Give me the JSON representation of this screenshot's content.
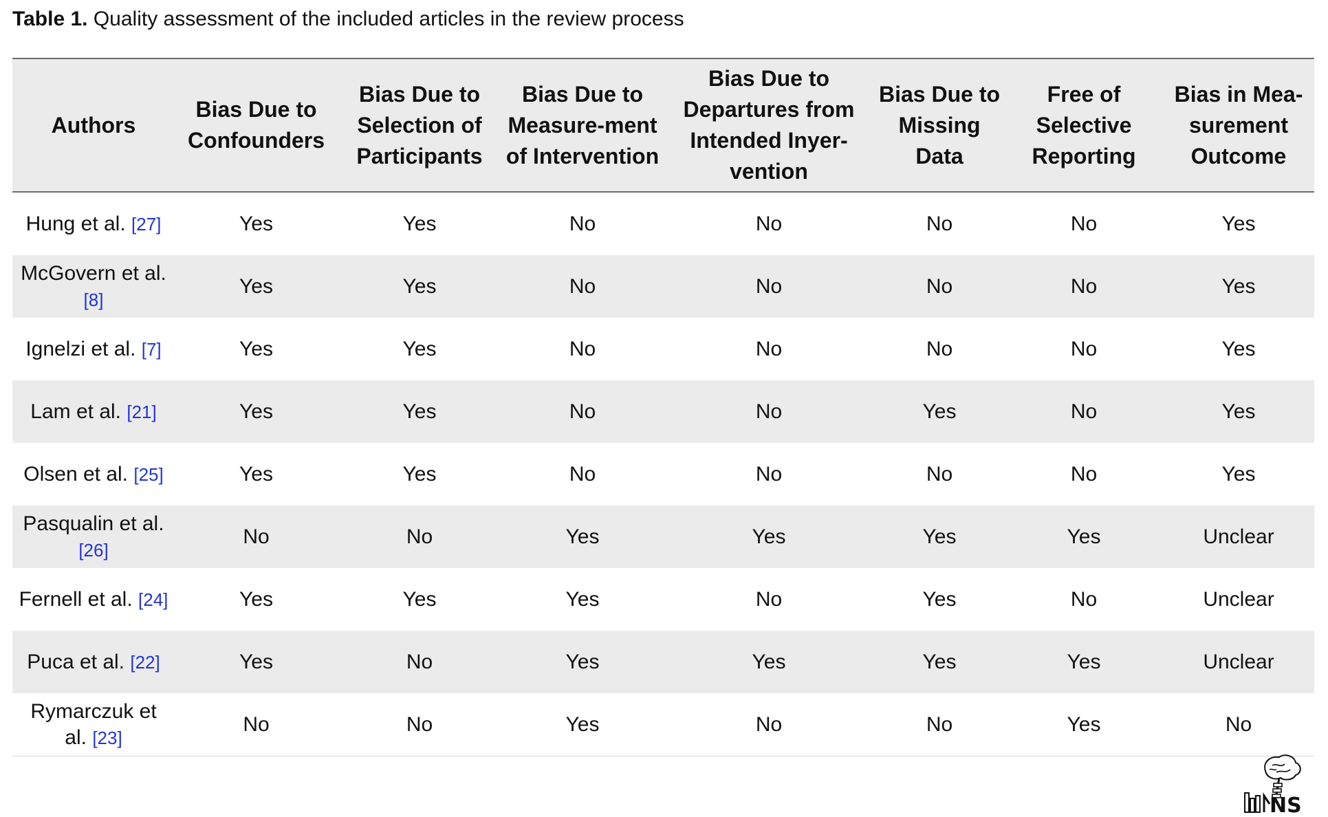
{
  "caption": {
    "label": "Table 1.",
    "text": "Quality assessment of the included articles in the review process"
  },
  "table": {
    "headers": [
      "Authors",
      "Bias Due to Confounders",
      "Bias Due to Selection of Participants",
      "Bias Due to Measure-ment of Intervention",
      "Bias Due to Departures from Intended Inyer-vention",
      "Bias Due to Missing Data",
      "Free of Selective Reporting",
      "Bias in Mea-surement Outcome"
    ],
    "rows": [
      {
        "author": "Hung et al.",
        "ref": "[27]",
        "values": [
          "Yes",
          "Yes",
          "No",
          "No",
          "No",
          "No",
          "Yes"
        ]
      },
      {
        "author": "McGovern et al.",
        "ref": "[8]",
        "values": [
          "Yes",
          "Yes",
          "No",
          "No",
          "No",
          "No",
          "Yes"
        ]
      },
      {
        "author": "Ignelzi et al.",
        "ref": "[7]",
        "values": [
          "Yes",
          "Yes",
          "No",
          "No",
          "No",
          "No",
          "Yes"
        ]
      },
      {
        "author": "Lam et al.",
        "ref": "[21]",
        "values": [
          "Yes",
          "Yes",
          "No",
          "No",
          "Yes",
          "No",
          "Yes"
        ]
      },
      {
        "author": "Olsen et al.",
        "ref": "[25]",
        "values": [
          "Yes",
          "Yes",
          "No",
          "No",
          "No",
          "No",
          "Yes"
        ]
      },
      {
        "author": "Pasqualin et al.",
        "ref": "[26]",
        "values": [
          "No",
          "No",
          "Yes",
          "Yes",
          "Yes",
          "Yes",
          "Unclear"
        ]
      },
      {
        "author": "Fernell et al.",
        "ref": "[24]",
        "values": [
          "Yes",
          "Yes",
          "Yes",
          "No",
          "Yes",
          "No",
          "Unclear"
        ]
      },
      {
        "author": "Puca et al.",
        "ref": "[22]",
        "values": [
          "Yes",
          "No",
          "Yes",
          "Yes",
          "Yes",
          "Yes",
          "Unclear"
        ]
      },
      {
        "author": "Rymarczuk et al.",
        "ref": "[23]",
        "values": [
          "No",
          "No",
          "Yes",
          "No",
          "No",
          "Yes",
          "No"
        ]
      }
    ]
  },
  "logo": {
    "text": "INS",
    "icon": "journal-logo-icon"
  },
  "colors": {
    "header_bg": "#ebebeb",
    "ref_link": "#2234d8",
    "rule": "#6d6d6d"
  }
}
